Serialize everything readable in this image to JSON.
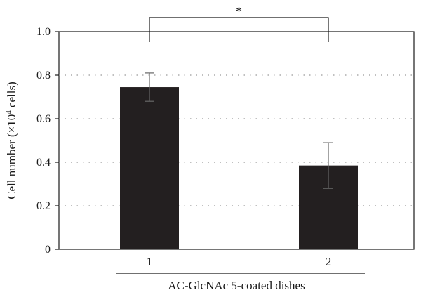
{
  "chart_data": {
    "type": "bar",
    "categories": [
      "1",
      "2"
    ],
    "values": [
      0.745,
      0.385
    ],
    "errors": [
      0.065,
      0.105
    ],
    "ylim": [
      0,
      1.0
    ],
    "yticks": [
      "0",
      "0.2",
      "0.4",
      "0.6",
      "0.8",
      "1.0"
    ],
    "ylabel_main": "Cell number (×10",
    "ylabel_sup": "4",
    "ylabel_tail": " cells)",
    "xlabel": "AC-GlcNAc 5-coated dishes",
    "significance": "*",
    "grid": "dotted horizontal",
    "colors": {
      "bar": "#231f20",
      "axis": "#1a1a1a",
      "grid": "#9a9a9a",
      "error": "#666666"
    }
  }
}
